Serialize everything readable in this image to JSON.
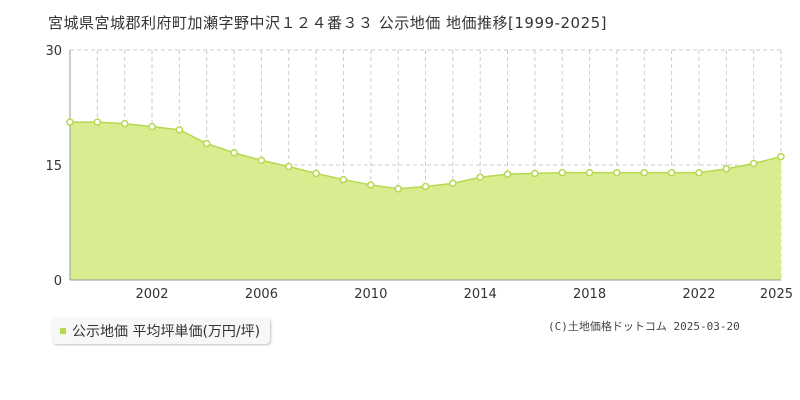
{
  "title": "宮城県宮城郡利府町加瀬字野中沢１２４番３３ 公示地価 地価推移[1999-2025]",
  "legend_label": "公示地価 平均坪単価(万円/坪)",
  "credit": "(C)土地価格ドットコム 2025-03-20",
  "colors": {
    "area_fill": "#d9ec8f",
    "line": "#b5d94f",
    "marker_fill": "#ffffff",
    "grid": "#cccccc",
    "axis": "#999999"
  },
  "chart_data": {
    "type": "area",
    "title": "宮城県宮城郡利府町加瀬字野中沢１２４番３３ 公示地価 地価推移[1999-2025]",
    "xlabel": "",
    "ylabel": "",
    "series": [
      {
        "name": "公示地価 平均坪単価(万円/坪)",
        "x": [
          1999,
          2000,
          2001,
          2002,
          2003,
          2004,
          2005,
          2006,
          2007,
          2008,
          2009,
          2010,
          2011,
          2012,
          2013,
          2014,
          2015,
          2016,
          2017,
          2018,
          2019,
          2020,
          2021,
          2022,
          2023,
          2024,
          2025
        ],
        "values": [
          20.6,
          20.6,
          20.4,
          20.0,
          19.6,
          17.8,
          16.6,
          15.6,
          14.8,
          13.9,
          13.1,
          12.4,
          11.9,
          12.2,
          12.6,
          13.4,
          13.8,
          13.9,
          14.0,
          14.0,
          14.0,
          14.0,
          14.0,
          14.0,
          14.5,
          15.2,
          16.1
        ]
      }
    ],
    "xlim": [
      1999,
      2025
    ],
    "ylim": [
      0,
      30
    ],
    "x_tick_labels": [
      "2002",
      "2006",
      "2010",
      "2014",
      "2018",
      "2022",
      "2025"
    ],
    "y_tick_labels": [
      "0",
      "15",
      "30"
    ],
    "grid": true,
    "legend_position": "bottom-left"
  }
}
